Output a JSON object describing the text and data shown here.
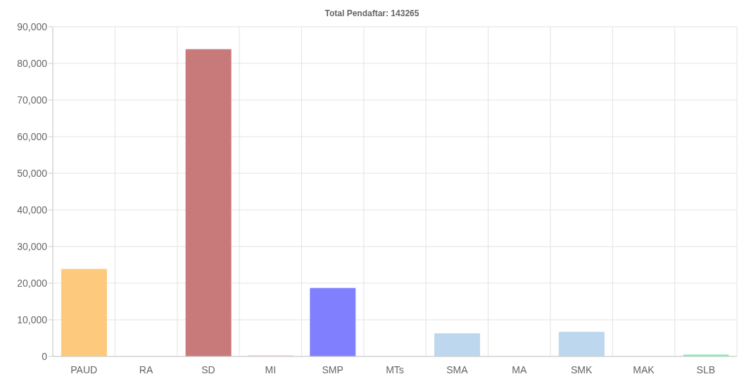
{
  "chart_data": {
    "type": "bar",
    "title": "Total Pendaftar: 143265",
    "categories": [
      "PAUD",
      "RA",
      "SD",
      "MI",
      "SMP",
      "MTs",
      "SMA",
      "MA",
      "SMK",
      "MAK",
      "SLB"
    ],
    "values": [
      23800,
      0,
      83800,
      200,
      18600,
      0,
      6200,
      0,
      6600,
      0,
      400
    ],
    "colors": [
      "#fcc97d",
      "#e0c0c0",
      "#c87a7a",
      "#f0c8c8",
      "#8080ff",
      "#d0d0e8",
      "#bdd7ee",
      "#d0d0e8",
      "#bdd7ee",
      "#d0d0e8",
      "#80f0b0"
    ],
    "ylim": [
      0,
      90000
    ],
    "yticks": [
      0,
      {
        "value": 10000,
        "label": "10,000"
      },
      {
        "value": 20000,
        "label": "20,000"
      },
      {
        "value": 30000,
        "label": "30,000"
      },
      {
        "value": 40000,
        "label": "40,000"
      },
      {
        "value": 50000,
        "label": "50,000"
      },
      {
        "value": 60000,
        "label": "60,000"
      },
      {
        "value": 70000,
        "label": "70,000"
      },
      {
        "value": 80000,
        "label": "80,000"
      },
      {
        "value": 90000,
        "label": "90,000"
      }
    ],
    "grid": true
  }
}
